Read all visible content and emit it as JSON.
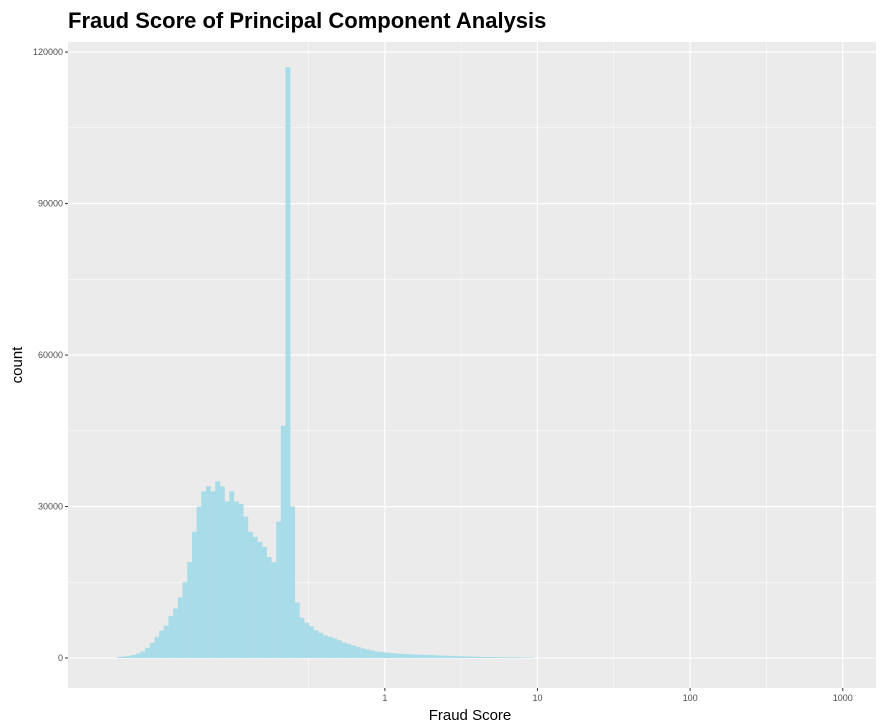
{
  "chart_data": {
    "type": "bar",
    "title": "Fraud Score of Principal Component Analysis",
    "xlabel": "Fraud Score",
    "ylabel": "count",
    "x_scale": "log10",
    "ylim": [
      0,
      122000
    ],
    "y_ticks": [
      0,
      30000,
      60000,
      90000,
      120000
    ],
    "y_tick_labels": [
      "0",
      "30000",
      "60000",
      "90000",
      "120000"
    ],
    "x_ticks": [
      1,
      10,
      100,
      1000
    ],
    "x_tick_labels": [
      "1",
      "10",
      "100",
      "1000"
    ],
    "grid": true,
    "bar_color": "#a8dce8",
    "panel_color": "#ebebeb",
    "grid_color": "#ffffff",
    "series": [
      {
        "x": [
          0.0182,
          0.0195,
          0.021,
          0.0225,
          0.0242,
          0.0259,
          0.0278,
          0.0299,
          0.0321,
          0.0344,
          0.0369,
          0.0396,
          0.0425,
          0.0456,
          0.0489,
          0.0525,
          0.0564,
          0.0605,
          0.0649,
          0.0697,
          0.0748,
          0.0802,
          0.0861,
          0.0924,
          0.0991,
          0.1064,
          0.1141,
          0.1225,
          0.1315,
          0.1411,
          0.1514,
          0.1625,
          0.1744,
          0.1871,
          0.2008,
          0.2155,
          0.2313,
          0.2482,
          0.2663,
          0.2858,
          0.3067,
          0.3291,
          0.3532,
          0.3791,
          0.4068,
          0.4366,
          0.4685,
          0.5028,
          0.5395,
          0.579,
          0.6214,
          0.6668,
          0.7156,
          0.768,
          0.8241,
          0.8844,
          0.9491,
          1.0185,
          1.093,
          1.173,
          1.2587,
          1.3508,
          1.4496,
          1.5556,
          1.6694,
          1.7915,
          1.9225,
          2.0631,
          2.214,
          2.3759,
          2.5497,
          2.7362,
          2.9363,
          3.1511,
          3.3815,
          3.6289,
          3.8943,
          4.1791,
          4.4847,
          4.8127,
          5.1647,
          5.5424,
          5.9478,
          6.3828,
          6.8496,
          7.3506,
          7.8882,
          8.4651,
          9.0842
        ],
        "values": [
          200,
          300,
          400,
          600,
          900,
          1300,
          2000,
          3000,
          4200,
          5400,
          6400,
          8300,
          9800,
          12000,
          15000,
          19000,
          25000,
          30000,
          33000,
          34000,
          33000,
          35000,
          34000,
          31000,
          33000,
          31000,
          30500,
          28000,
          25000,
          24000,
          23000,
          22000,
          20000,
          19000,
          27000,
          46000,
          117000,
          30000,
          11000,
          8000,
          7000,
          6300,
          5500,
          5000,
          4500,
          4200,
          3900,
          3500,
          3100,
          2800,
          2500,
          2200,
          1900,
          1700,
          1500,
          1300,
          1200,
          1100,
          1000,
          900,
          850,
          800,
          750,
          700,
          650,
          620,
          600,
          560,
          520,
          480,
          450,
          420,
          380,
          350,
          320,
          300,
          270,
          240,
          220,
          200,
          180,
          160,
          150,
          140,
          120,
          110,
          100,
          90,
          80
        ]
      }
    ]
  }
}
